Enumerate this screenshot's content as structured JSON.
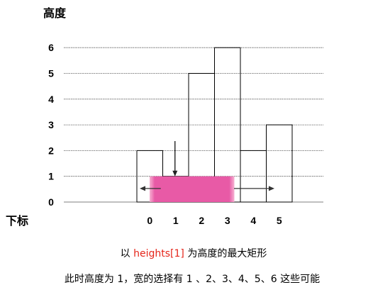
{
  "chart_data": {
    "type": "bar",
    "ylabel": "高度",
    "xlabel": "下标",
    "categories": [
      "0",
      "1",
      "2",
      "3",
      "4",
      "5"
    ],
    "values": [
      2,
      1,
      5,
      6,
      2,
      3
    ],
    "ylim": [
      0,
      6
    ],
    "yticks": [
      0,
      1,
      2,
      3,
      4,
      5,
      6
    ],
    "grid": true,
    "highlight": {
      "index": 1,
      "height": 1,
      "x_range": [
        0,
        3
      ],
      "color": "#e85aa6",
      "arrows": [
        "down",
        "left",
        "right"
      ]
    }
  },
  "captions": {
    "line1_prefix": "以 ",
    "line1_highlight": "heights[1]",
    "line1_suffix": " 为高度的最大矩形",
    "line2": "此时高度为 1，宽的选择有 1 、2、3、4、5、6 这些可能"
  },
  "colors": {
    "highlight_text": "#e5261b",
    "bar_stroke": "#000000",
    "grid": "#555555"
  }
}
